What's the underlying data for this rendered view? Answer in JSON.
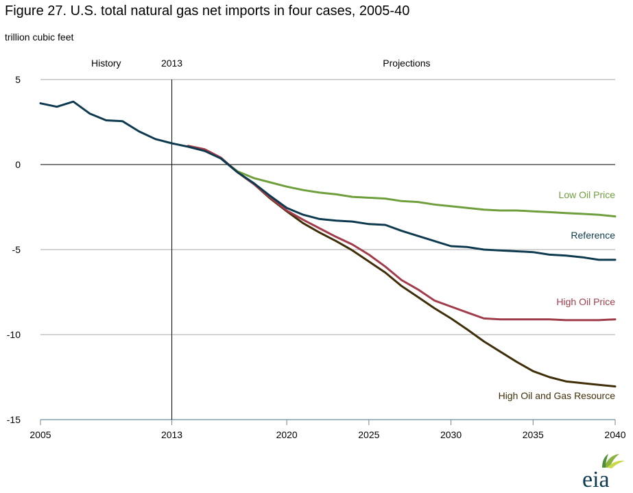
{
  "header": {
    "title": "Figure 27. U.S. total natural gas net imports in four cases, 2005-40",
    "unit": "trillion cubic feet"
  },
  "logo": {
    "text": "eia",
    "icon": "eia-sunburst-logo"
  },
  "chart_data": {
    "type": "line",
    "title": "Figure 27. U.S. total natural gas net imports in four cases, 2005-40",
    "ylabel": "trillion cubic feet",
    "xlabel": "",
    "xlim": [
      2005,
      2040
    ],
    "ylim": [
      -15,
      5
    ],
    "x_ticks": [
      2005,
      2013,
      2020,
      2025,
      2030,
      2035,
      2040
    ],
    "y_ticks": [
      5,
      0,
      -5,
      -10,
      -15
    ],
    "grid": "horizontal",
    "divider": {
      "year": 2013,
      "label": "2013"
    },
    "region_labels": {
      "history": "History",
      "projections": "Projections"
    },
    "colors": {
      "low_oil": "#6e9f3c",
      "reference": "#0e3a4f",
      "high_oil": "#a13c4a",
      "high_resource": "#3f2e08"
    },
    "history": {
      "x": [
        2005,
        2006,
        2007,
        2008,
        2009,
        2010,
        2011,
        2012,
        2013,
        2014,
        2015,
        2016
      ],
      "y": [
        3.6,
        3.4,
        3.7,
        3.0,
        2.6,
        2.55,
        1.95,
        1.5,
        1.25,
        1.05,
        0.8,
        0.35
      ]
    },
    "series": [
      {
        "key": "low_oil",
        "name": "Low Oil Price",
        "x": [
          2016,
          2017,
          2018,
          2019,
          2020,
          2021,
          2022,
          2023,
          2024,
          2025,
          2026,
          2027,
          2028,
          2029,
          2030,
          2031,
          2032,
          2033,
          2034,
          2035,
          2036,
          2037,
          2038,
          2039,
          2040
        ],
        "y": [
          0.35,
          -0.4,
          -0.8,
          -1.05,
          -1.3,
          -1.5,
          -1.65,
          -1.75,
          -1.9,
          -1.95,
          -2.0,
          -2.15,
          -2.2,
          -2.35,
          -2.45,
          -2.55,
          -2.65,
          -2.7,
          -2.7,
          -2.75,
          -2.8,
          -2.85,
          -2.9,
          -2.95,
          -3.05
        ]
      },
      {
        "key": "reference",
        "name": "Reference",
        "x": [
          2016,
          2017,
          2018,
          2019,
          2020,
          2021,
          2022,
          2023,
          2024,
          2025,
          2026,
          2027,
          2028,
          2029,
          2030,
          2031,
          2032,
          2033,
          2034,
          2035,
          2036,
          2037,
          2038,
          2039,
          2040
        ],
        "y": [
          0.35,
          -0.45,
          -1.1,
          -1.85,
          -2.55,
          -2.95,
          -3.2,
          -3.3,
          -3.35,
          -3.5,
          -3.55,
          -3.9,
          -4.2,
          -4.5,
          -4.8,
          -4.85,
          -5.0,
          -5.05,
          -5.1,
          -5.15,
          -5.3,
          -5.35,
          -5.45,
          -5.6,
          -5.6
        ]
      },
      {
        "key": "high_oil",
        "name": "High Oil Price",
        "x": [
          2014,
          2015,
          2016,
          2017,
          2018,
          2019,
          2020,
          2021,
          2022,
          2023,
          2024,
          2025,
          2026,
          2027,
          2028,
          2029,
          2030,
          2031,
          2032,
          2033,
          2034,
          2035,
          2036,
          2037,
          2038,
          2039,
          2040
        ],
        "y": [
          1.1,
          0.9,
          0.4,
          -0.45,
          -1.15,
          -1.95,
          -2.7,
          -3.25,
          -3.75,
          -4.25,
          -4.7,
          -5.3,
          -6.0,
          -6.8,
          -7.35,
          -8.0,
          -8.35,
          -8.7,
          -9.05,
          -9.1,
          -9.1,
          -9.1,
          -9.1,
          -9.15,
          -9.15,
          -9.15,
          -9.1
        ]
      },
      {
        "key": "high_resource",
        "name": "High Oil and Gas Resource",
        "x": [
          2016,
          2017,
          2018,
          2019,
          2020,
          2021,
          2022,
          2023,
          2024,
          2025,
          2026,
          2027,
          2028,
          2029,
          2030,
          2031,
          2032,
          2033,
          2034,
          2035,
          2036,
          2037,
          2038,
          2039,
          2040
        ],
        "y": [
          0.35,
          -0.45,
          -1.15,
          -2.0,
          -2.75,
          -3.45,
          -4.0,
          -4.5,
          -5.05,
          -5.7,
          -6.35,
          -7.15,
          -7.8,
          -8.45,
          -9.05,
          -9.7,
          -10.4,
          -11.0,
          -11.6,
          -12.15,
          -12.5,
          -12.75,
          -12.85,
          -12.95,
          -13.05
        ]
      }
    ],
    "label_order": [
      "low_oil",
      "reference",
      "high_oil",
      "high_resource"
    ]
  }
}
